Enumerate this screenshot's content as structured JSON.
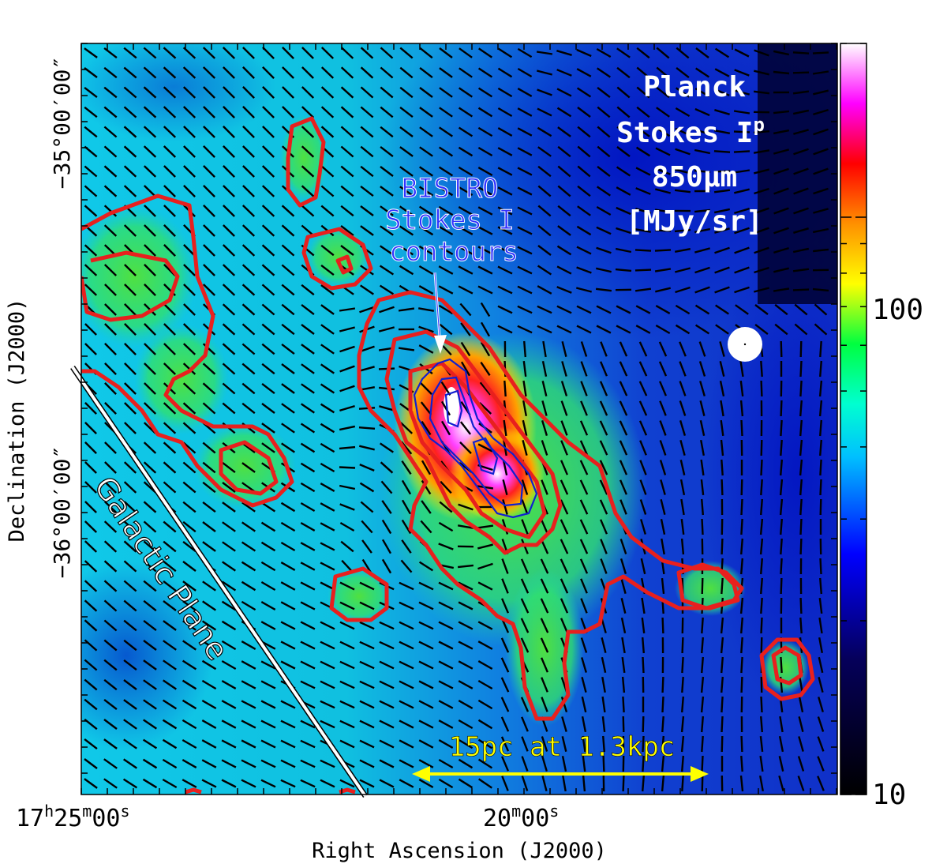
{
  "title": {
    "line1": "Planck",
    "line2_base": "Stokes I",
    "line2_sup": "p",
    "line3": "850μm",
    "line4": "[MJy/sr]"
  },
  "bistro_label": {
    "line1": "BISTRO",
    "line2": "Stokes I",
    "line3": "contours"
  },
  "galactic_plane_label": "Galactic Plane",
  "scale_bar_label": "15pc at 1.3kpc",
  "colorbar": {
    "scale": "log",
    "range": [
      10,
      200
    ],
    "tick_labels": [
      "100",
      "10"
    ]
  },
  "axes": {
    "xlabel": "Right Ascension (J2000)",
    "ylabel": "Declination (J2000)",
    "xticks": [
      {
        "h": "17",
        "m": "25",
        "s": "00"
      },
      {
        "m": "20",
        "s": "00"
      }
    ],
    "yticks": [
      "−35°00′00″",
      "−36°00′00″"
    ]
  },
  "colors": {
    "planck_contour": "#e8201e",
    "bistro_contour": "#1020d0",
    "arrow": "#ffffff",
    "bistro_text": "#3030ff",
    "title_text": "#ffffff",
    "scale_bar": "#ffff00",
    "vector": "#000000",
    "beam": "#ffffff"
  }
}
